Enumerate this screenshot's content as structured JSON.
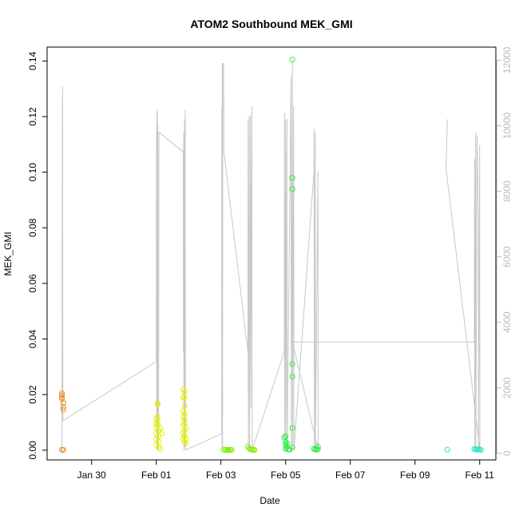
{
  "chart_data": {
    "type": "scatter",
    "title": "ATOM2 Southbound MEK_GMI",
    "xlabel": "Date",
    "ylabel": "MEK_GMI",
    "xlim": [
      "2023-01-28T15:00",
      "2023-02-11T12:00"
    ],
    "ylim": [
      -0.0035,
      0.145
    ],
    "y2lim": [
      -200,
      12400
    ],
    "x_ticks": [
      {
        "date": "2023-01-30T00:00",
        "label": "Jan 30"
      },
      {
        "date": "2023-02-01T00:00",
        "label": "Feb 01"
      },
      {
        "date": "2023-02-03T00:00",
        "label": "Feb 03"
      },
      {
        "date": "2023-02-05T00:00",
        "label": "Feb 05"
      },
      {
        "date": "2023-02-07T00:00",
        "label": "Feb 07"
      },
      {
        "date": "2023-02-09T00:00",
        "label": "Feb 09"
      },
      {
        "date": "2023-02-11T00:00",
        "label": "Feb 11"
      }
    ],
    "y_ticks": [
      "0.00",
      "0.02",
      "0.04",
      "0.06",
      "0.08",
      "0.10",
      "0.12",
      "0.14"
    ],
    "y2_ticks": [
      "0",
      "2000",
      "4000",
      "6000",
      "8000",
      "10000",
      "12000"
    ],
    "grid": false,
    "legend": "none",
    "series": [
      {
        "color": "#F28C1E",
        "points": [
          [
            "2023-01-29T02:00",
            0.0205
          ],
          [
            "2023-01-29T02:00",
            0.0198
          ],
          [
            "2023-01-29T02:00",
            0.019
          ],
          [
            "2023-01-29T02:00",
            0.0185
          ],
          [
            "2023-01-29T03:00",
            0.017
          ],
          [
            "2023-01-29T03:00",
            0.0155
          ],
          [
            "2023-01-29T03:00",
            0.0145
          ],
          [
            "2023-01-29T02:00",
            0.0002
          ],
          [
            "2023-01-29T03:00",
            0.0001
          ]
        ]
      },
      {
        "color": "#E8F000",
        "points": [
          [
            "2023-02-01T00:00",
            0.0115
          ],
          [
            "2023-02-01T00:00",
            0.0095
          ],
          [
            "2023-02-01T00:00",
            0.008
          ],
          [
            "2023-02-01T00:00",
            0.006
          ],
          [
            "2023-02-01T00:00",
            0.004
          ],
          [
            "2023-02-01T00:00",
            0.002
          ],
          [
            "2023-02-01T01:00",
            0.017
          ],
          [
            "2023-02-01T01:00",
            0.0165
          ],
          [
            "2023-02-01T01:00",
            0.012
          ],
          [
            "2023-02-01T01:00",
            0.0105
          ],
          [
            "2023-02-01T01:00",
            0.009
          ],
          [
            "2023-02-01T02:00",
            0.007
          ],
          [
            "2023-02-01T02:00",
            0.005
          ],
          [
            "2023-02-01T02:00",
            0.003
          ],
          [
            "2023-02-01T02:00",
            0.001
          ],
          [
            "2023-02-01T03:00",
            0.0005
          ],
          [
            "2023-02-01T03:00",
            0.008
          ],
          [
            "2023-02-01T04:00",
            0.006
          ],
          [
            "2023-02-01T20:00",
            0.022
          ],
          [
            "2023-02-01T20:00",
            0.019
          ],
          [
            "2023-02-01T20:00",
            0.014
          ],
          [
            "2023-02-01T20:00",
            0.012
          ],
          [
            "2023-02-01T20:00",
            0.009
          ],
          [
            "2023-02-01T20:00",
            0.006
          ],
          [
            "2023-02-01T20:00",
            0.004
          ],
          [
            "2023-02-01T21:00",
            0.021
          ],
          [
            "2023-02-01T21:00",
            0.019
          ],
          [
            "2023-02-01T21:00",
            0.016
          ],
          [
            "2023-02-01T21:00",
            0.013
          ],
          [
            "2023-02-01T21:00",
            0.011
          ],
          [
            "2023-02-01T21:00",
            0.0095
          ],
          [
            "2023-02-01T21:00",
            0.007
          ],
          [
            "2023-02-01T21:00",
            0.005
          ],
          [
            "2023-02-01T21:00",
            0.003
          ],
          [
            "2023-02-01T22:00",
            0.008
          ],
          [
            "2023-02-01T22:00",
            0.0025
          ],
          [
            "2023-02-01T22:00",
            0.004
          ]
        ]
      },
      {
        "color": "#7FF000",
        "points": [
          [
            "2023-02-03T02:00",
            0.0002
          ],
          [
            "2023-02-03T03:00",
            0.0001
          ],
          [
            "2023-02-03T04:00",
            0.0002
          ],
          [
            "2023-02-03T05:00",
            0.0001
          ],
          [
            "2023-02-03T06:00",
            0.0001
          ],
          [
            "2023-02-03T07:00",
            0.0002
          ],
          [
            "2023-02-03T08:00",
            0.0001
          ],
          [
            "2023-02-03T20:00",
            0.0013
          ],
          [
            "2023-02-03T21:00",
            0.0006
          ],
          [
            "2023-02-03T22:00",
            0.0003
          ],
          [
            "2023-02-03T23:00",
            0.0002
          ],
          [
            "2023-02-04T00:00",
            0.0001
          ],
          [
            "2023-02-04T01:00",
            0.0001
          ]
        ]
      },
      {
        "color": "#22F03A",
        "points": [
          [
            "2023-02-04T23:00",
            0.0045
          ],
          [
            "2023-02-05T00:00",
            0.005
          ],
          [
            "2023-02-05T00:00",
            0.003
          ],
          [
            "2023-02-05T00:00",
            0.002
          ],
          [
            "2023-02-05T00:00",
            0.0005
          ],
          [
            "2023-02-05T01:00",
            0.0025
          ],
          [
            "2023-02-05T01:00",
            0.001
          ],
          [
            "2023-02-05T02:00",
            0.0003
          ],
          [
            "2023-02-05T03:00",
            0.0002
          ],
          [
            "2023-02-05T05:00",
            0.1405
          ],
          [
            "2023-02-05T05:00",
            0.098
          ],
          [
            "2023-02-05T05:00",
            0.094
          ],
          [
            "2023-02-05T05:00",
            0.031
          ],
          [
            "2023-02-05T05:00",
            0.0265
          ],
          [
            "2023-02-05T05:00",
            0.008
          ],
          [
            "2023-02-05T05:00",
            0.001
          ],
          [
            "2023-02-05T21:00",
            0.0005
          ],
          [
            "2023-02-05T22:00",
            0.0003
          ],
          [
            "2023-02-05T23:00",
            0.0002
          ],
          [
            "2023-02-06T00:00",
            0.0013
          ],
          [
            "2023-02-06T00:00",
            0.0004
          ]
        ]
      },
      {
        "color": "#20E8C0",
        "points": [
          [
            "2023-02-10T00:00",
            0.0002
          ],
          [
            "2023-02-10T20:00",
            0.0004
          ],
          [
            "2023-02-10T21:00",
            0.0003
          ],
          [
            "2023-02-10T22:00",
            0.0002
          ],
          [
            "2023-02-10T23:00",
            0.0002
          ],
          [
            "2023-02-11T00:00",
            0.0003
          ],
          [
            "2023-02-11T01:00",
            0.0001
          ]
        ]
      }
    ],
    "secondary_line": {
      "color": "#C8C8C8",
      "points": [
        [
          "2023-01-29T02:00",
          0
        ],
        [
          "2023-01-29T02:10",
          6000
        ],
        [
          "2023-01-29T02:20",
          10500
        ],
        [
          "2023-01-29T02:30",
          11200
        ],
        [
          "2023-01-29T02:40",
          1200
        ],
        [
          "2023-01-29T02:50",
          1000
        ],
        [
          "2023-02-01T00:00",
          2800
        ],
        [
          "2023-02-01T00:10",
          9800
        ],
        [
          "2023-02-01T00:20",
          100
        ],
        [
          "2023-02-01T00:30",
          10400
        ],
        [
          "2023-02-01T00:40",
          200
        ],
        [
          "2023-02-01T00:50",
          10500
        ],
        [
          "2023-02-01T01:00",
          100
        ],
        [
          "2023-02-01T01:10",
          10000
        ],
        [
          "2023-02-01T01:20",
          100
        ],
        [
          "2023-02-01T01:30",
          6500
        ],
        [
          "2023-02-01T01:40",
          100
        ],
        [
          "2023-02-01T02:00",
          9800
        ],
        [
          "2023-02-01T20:00",
          9200
        ],
        [
          "2023-02-01T20:10",
          3100
        ],
        [
          "2023-02-01T20:20",
          9800
        ],
        [
          "2023-02-01T20:30",
          100
        ],
        [
          "2023-02-01T21:00",
          10200
        ],
        [
          "2023-02-01T21:10",
          200
        ],
        [
          "2023-02-01T21:30",
          10500
        ],
        [
          "2023-02-01T21:40",
          100
        ],
        [
          "2023-02-03T00:30",
          600
        ],
        [
          "2023-02-03T00:40",
          10600
        ],
        [
          "2023-02-03T00:50",
          200
        ],
        [
          "2023-02-03T01:00",
          11900
        ],
        [
          "2023-02-03T01:10",
          200
        ],
        [
          "2023-02-03T01:20",
          11900
        ],
        [
          "2023-02-03T02:00",
          11900
        ],
        [
          "2023-02-03T02:10",
          9200
        ],
        [
          "2023-02-03T20:00",
          3100
        ],
        [
          "2023-02-03T20:10",
          10200
        ],
        [
          "2023-02-03T20:20",
          100
        ],
        [
          "2023-02-03T21:00",
          10300
        ],
        [
          "2023-02-03T21:10",
          100
        ],
        [
          "2023-02-03T22:00",
          10300
        ],
        [
          "2023-02-03T22:10",
          1400
        ],
        [
          "2023-02-03T23:00",
          10600
        ],
        [
          "2023-02-03T23:10",
          100
        ],
        [
          "2023-02-04T23:00",
          3100
        ],
        [
          "2023-02-04T23:10",
          10400
        ],
        [
          "2023-02-04T23:20",
          100
        ],
        [
          "2023-02-05T00:00",
          10200
        ],
        [
          "2023-02-05T00:10",
          100
        ],
        [
          "2023-02-05T01:00",
          10200
        ],
        [
          "2023-02-05T01:10",
          100
        ],
        [
          "2023-02-05T04:00",
          11500
        ],
        [
          "2023-02-05T04:10",
          100
        ],
        [
          "2023-02-05T05:00",
          12000
        ],
        [
          "2023-02-05T05:10",
          100
        ],
        [
          "2023-02-05T06:00",
          10600
        ],
        [
          "2023-02-05T06:10",
          100
        ],
        [
          "2023-02-05T21:00",
          8600
        ],
        [
          "2023-02-05T21:10",
          9900
        ],
        [
          "2023-02-05T21:20",
          100
        ],
        [
          "2023-02-05T22:00",
          9800
        ],
        [
          "2023-02-05T22:10",
          100
        ],
        [
          "2023-02-06T00:00",
          8600
        ],
        [
          "2023-02-06T00:10",
          100
        ],
        [
          "2023-02-05T05:00",
          3400
        ],
        [
          "2023-02-10T20:00",
          3400
        ],
        [
          "2023-02-10T20:10",
          9000
        ],
        [
          "2023-02-10T20:20",
          100
        ],
        [
          "2023-02-10T21:00",
          9800
        ],
        [
          "2023-02-10T21:10",
          100
        ],
        [
          "2023-02-10T22:00",
          9700
        ],
        [
          "2023-02-10T23:00",
          7000
        ],
        [
          "2023-02-10T23:10",
          200
        ],
        [
          "2023-02-11T00:00",
          9400
        ],
        [
          "2023-02-11T00:10",
          100
        ],
        [
          "2023-02-09T23:00",
          8700
        ],
        [
          "2023-02-10T00:00",
          10200
        ]
      ]
    }
  }
}
